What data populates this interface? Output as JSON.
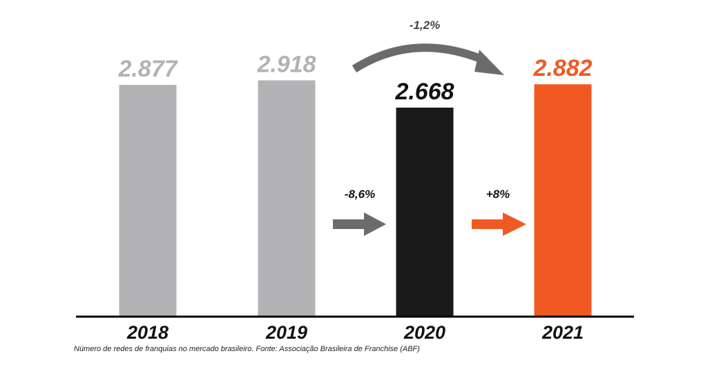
{
  "chart_data": {
    "type": "bar",
    "categories": [
      "2018",
      "2019",
      "2020",
      "2021"
    ],
    "values": [
      2877,
      2918,
      2668,
      2882
    ],
    "value_labels": [
      "2.877",
      "2.918",
      "2.668",
      "2.882"
    ],
    "bar_colors": [
      "#b3b3b5",
      "#b3b3b5",
      "#1a1a1a",
      "#f05a22"
    ],
    "value_label_colors": [
      "#b3b3b5",
      "#b3b3b5",
      "#111111",
      "#f05a22"
    ],
    "annotations": [
      {
        "text": "-8,6%",
        "from": "2019",
        "to": "2020",
        "color": "#6b6b6b"
      },
      {
        "text": "+8%",
        "from": "2020",
        "to": "2021",
        "color": "#f05a22"
      },
      {
        "text": "-1,2%",
        "from": "2019",
        "to": "2021",
        "color": "#6b6b6b"
      }
    ],
    "caption": "Número de redes de franquias no mercado brasileiro. Fonte: Associação Brasileira de Franchise (ABF)"
  }
}
